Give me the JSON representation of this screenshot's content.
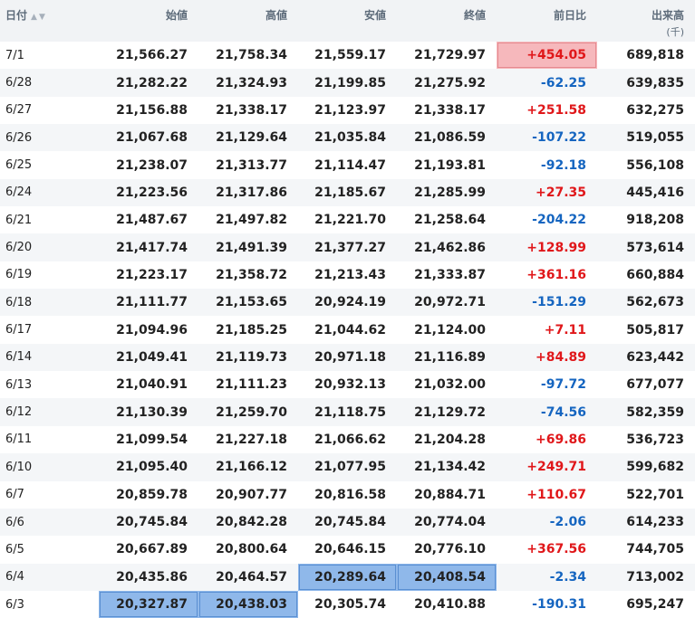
{
  "header": {
    "date": "日付",
    "date_sort_up": "▲",
    "date_sort_down": "▼",
    "open": "始値",
    "high": "高値",
    "low": "安値",
    "close": "終値",
    "change": "前日比",
    "volume": "出来高",
    "volume_unit": "(千)"
  },
  "colors": {
    "positive": "#e0171a",
    "negative": "#1565c0",
    "highlight_red": "#f6b8bc",
    "highlight_blue": "#8fb8ea"
  },
  "rows": [
    {
      "date": "7/1",
      "open": "21,566.27",
      "high": "21,758.34",
      "low": "21,559.17",
      "close": "21,729.97",
      "change": "+454.05",
      "volume": "689,818",
      "hl": {
        "change": "red"
      }
    },
    {
      "date": "6/28",
      "open": "21,282.22",
      "high": "21,324.93",
      "low": "21,199.85",
      "close": "21,275.92",
      "change": "-62.25",
      "volume": "639,835"
    },
    {
      "date": "6/27",
      "open": "21,156.88",
      "high": "21,338.17",
      "low": "21,123.97",
      "close": "21,338.17",
      "change": "+251.58",
      "volume": "632,275"
    },
    {
      "date": "6/26",
      "open": "21,067.68",
      "high": "21,129.64",
      "low": "21,035.84",
      "close": "21,086.59",
      "change": "-107.22",
      "volume": "519,055"
    },
    {
      "date": "6/25",
      "open": "21,238.07",
      "high": "21,313.77",
      "low": "21,114.47",
      "close": "21,193.81",
      "change": "-92.18",
      "volume": "556,108"
    },
    {
      "date": "6/24",
      "open": "21,223.56",
      "high": "21,317.86",
      "low": "21,185.67",
      "close": "21,285.99",
      "change": "+27.35",
      "volume": "445,416"
    },
    {
      "date": "6/21",
      "open": "21,487.67",
      "high": "21,497.82",
      "low": "21,221.70",
      "close": "21,258.64",
      "change": "-204.22",
      "volume": "918,208"
    },
    {
      "date": "6/20",
      "open": "21,417.74",
      "high": "21,491.39",
      "low": "21,377.27",
      "close": "21,462.86",
      "change": "+128.99",
      "volume": "573,614"
    },
    {
      "date": "6/19",
      "open": "21,223.17",
      "high": "21,358.72",
      "low": "21,213.43",
      "close": "21,333.87",
      "change": "+361.16",
      "volume": "660,884"
    },
    {
      "date": "6/18",
      "open": "21,111.77",
      "high": "21,153.65",
      "low": "20,924.19",
      "close": "20,972.71",
      "change": "-151.29",
      "volume": "562,673"
    },
    {
      "date": "6/17",
      "open": "21,094.96",
      "high": "21,185.25",
      "low": "21,044.62",
      "close": "21,124.00",
      "change": "+7.11",
      "volume": "505,817"
    },
    {
      "date": "6/14",
      "open": "21,049.41",
      "high": "21,119.73",
      "low": "20,971.18",
      "close": "21,116.89",
      "change": "+84.89",
      "volume": "623,442"
    },
    {
      "date": "6/13",
      "open": "21,040.91",
      "high": "21,111.23",
      "low": "20,932.13",
      "close": "21,032.00",
      "change": "-97.72",
      "volume": "677,077"
    },
    {
      "date": "6/12",
      "open": "21,130.39",
      "high": "21,259.70",
      "low": "21,118.75",
      "close": "21,129.72",
      "change": "-74.56",
      "volume": "582,359"
    },
    {
      "date": "6/11",
      "open": "21,099.54",
      "high": "21,227.18",
      "low": "21,066.62",
      "close": "21,204.28",
      "change": "+69.86",
      "volume": "536,723"
    },
    {
      "date": "6/10",
      "open": "21,095.40",
      "high": "21,166.12",
      "low": "21,077.95",
      "close": "21,134.42",
      "change": "+249.71",
      "volume": "599,682"
    },
    {
      "date": "6/7",
      "open": "20,859.78",
      "high": "20,907.77",
      "low": "20,816.58",
      "close": "20,884.71",
      "change": "+110.67",
      "volume": "522,701"
    },
    {
      "date": "6/6",
      "open": "20,745.84",
      "high": "20,842.28",
      "low": "20,745.84",
      "close": "20,774.04",
      "change": "-2.06",
      "volume": "614,233"
    },
    {
      "date": "6/5",
      "open": "20,667.89",
      "high": "20,800.64",
      "low": "20,646.15",
      "close": "20,776.10",
      "change": "+367.56",
      "volume": "744,705"
    },
    {
      "date": "6/4",
      "open": "20,435.86",
      "high": "20,464.57",
      "low": "20,289.64",
      "close": "20,408.54",
      "change": "-2.34",
      "volume": "713,002",
      "hl": {
        "low": "blue",
        "close": "blue"
      }
    },
    {
      "date": "6/3",
      "open": "20,327.87",
      "high": "20,438.03",
      "low": "20,305.74",
      "close": "20,410.88",
      "change": "-190.31",
      "volume": "695,247",
      "hl": {
        "open": "blue",
        "high": "blue"
      }
    }
  ]
}
